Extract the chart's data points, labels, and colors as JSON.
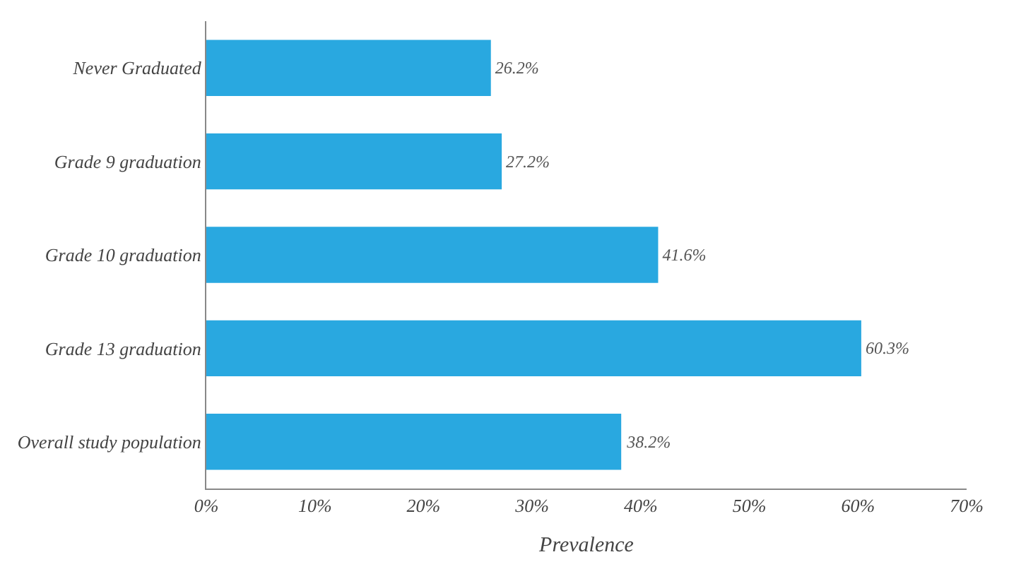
{
  "chart_data": {
    "type": "bar",
    "orientation": "horizontal",
    "xlabel": "Prevalence",
    "categories": [
      "Never Graduated",
      "Grade 9 graduation",
      "Grade 10 graduation",
      "Grade 13 graduation",
      "Overall study population"
    ],
    "values": [
      26.2,
      27.2,
      41.6,
      60.3,
      38.2
    ],
    "value_labels": [
      "26.2%",
      "27.2%",
      "41.6%",
      "60.3%",
      "38.2%"
    ],
    "color": "#29a8e0",
    "xlim": [
      0,
      70
    ],
    "xticks": [
      {
        "value": 0,
        "label": "0%"
      },
      {
        "value": 10,
        "label": "10%"
      },
      {
        "value": 20,
        "label": "20%"
      },
      {
        "value": 30,
        "label": "30%"
      },
      {
        "value": 40,
        "label": "40%"
      },
      {
        "value": 50,
        "label": "50%"
      },
      {
        "value": 60,
        "label": "60%"
      },
      {
        "value": 70,
        "label": "70%"
      }
    ],
    "line_style": "solid"
  }
}
